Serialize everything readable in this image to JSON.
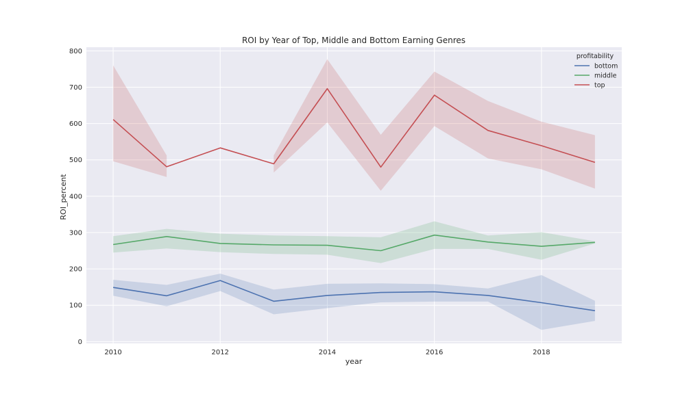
{
  "chart_data": {
    "type": "line",
    "title": "ROI by Year of Top, Middle and Bottom Earning Genres",
    "xlabel": "year",
    "ylabel": "ROI_percent",
    "x": [
      2010,
      2011,
      2012,
      2013,
      2014,
      2015,
      2016,
      2017,
      2018,
      2019
    ],
    "xlim": [
      2009.5,
      2019.5
    ],
    "ylim": [
      -5,
      810
    ],
    "xticks": [
      2010,
      2012,
      2014,
      2016,
      2018
    ],
    "yticks": [
      0,
      100,
      200,
      300,
      400,
      500,
      600,
      700,
      800
    ],
    "grid": true,
    "legend": {
      "title": "profitability",
      "position": "top-right"
    },
    "series": [
      {
        "name": "bottom",
        "color": "#4c72b0",
        "values": [
          149,
          126,
          168,
          111,
          127,
          135,
          137,
          127,
          107,
          85
        ],
        "ci_low": [
          126,
          97,
          139,
          75,
          92,
          108,
          110,
          110,
          32,
          57
        ],
        "ci_high": [
          170,
          156,
          187,
          143,
          159,
          160,
          158,
          146,
          183,
          112
        ]
      },
      {
        "name": "middle",
        "color": "#55a868",
        "values": [
          267,
          289,
          270,
          266,
          265,
          250,
          293,
          274,
          262,
          273
        ],
        "ci_low": [
          245,
          256,
          246,
          241,
          239,
          216,
          255,
          255,
          225,
          270
        ],
        "ci_high": [
          290,
          310,
          297,
          292,
          290,
          287,
          331,
          292,
          301,
          276
        ]
      },
      {
        "name": "top",
        "color": "#c44e52",
        "values": [
          611,
          481,
          533,
          489,
          696,
          480,
          678,
          581,
          539,
          493
        ],
        "ci_low": [
          496,
          453,
          null,
          465,
          603,
          415,
          593,
          504,
          474,
          421
        ],
        "ci_high": [
          760,
          512,
          null,
          512,
          777,
          569,
          743,
          662,
          605,
          568
        ]
      }
    ]
  }
}
